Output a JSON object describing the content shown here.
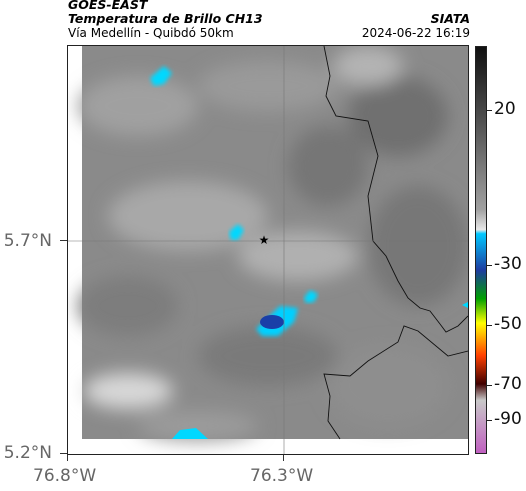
{
  "header": {
    "satellite": "GOES-EAST",
    "product": "Temperatura de Brillo CH13",
    "region": "Vía Medellín - Quibdó 50km",
    "brand": "SIATA",
    "timestamp": "2024-06-22 16:19"
  },
  "axes": {
    "y_labels": [
      "5.7°N",
      "5.2°N"
    ],
    "x_labels": [
      "76.8°W",
      "76.3°W"
    ]
  },
  "colorbar": {
    "labels": [
      "20",
      "-30",
      "-50",
      "-70",
      "-90"
    ],
    "colors": [
      "#101010",
      "#505050",
      "#a0a0a0",
      "#e8e8e8",
      "#00c8ff",
      "#1e3ca0",
      "#00a000",
      "#ffff00",
      "#ff4000",
      "#400000",
      "#c8c8c8",
      "#c060c0"
    ]
  },
  "map": {
    "marker_icon": "star-icon",
    "base_color": "#888888",
    "cold_color": "#1a3fa8",
    "ice_color": "#00d8ff"
  }
}
